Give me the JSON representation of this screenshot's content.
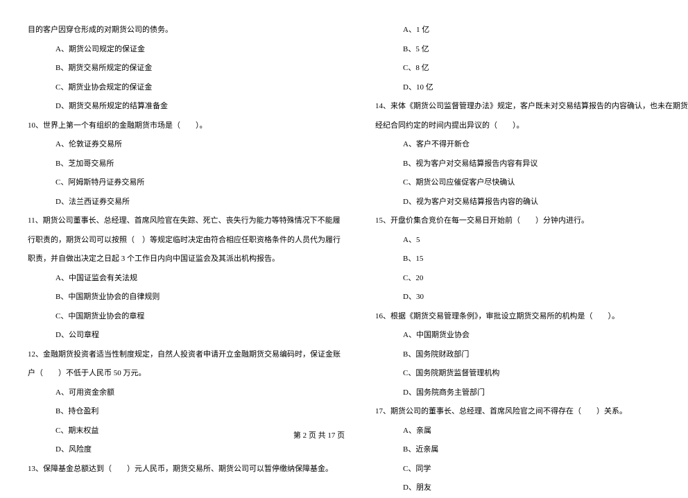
{
  "left": [
    {
      "cls": "indent0",
      "text": "目的客户因穿仓形成的对期货公司的债务。"
    },
    {
      "cls": "indent1",
      "text": "A、期货公司规定的保证金"
    },
    {
      "cls": "indent1",
      "text": "B、期货交易所规定的保证金"
    },
    {
      "cls": "indent1",
      "text": "C、期货业协会规定的保证金"
    },
    {
      "cls": "indent1",
      "text": "D、期货交易所规定的结算准备金"
    },
    {
      "cls": "indent0",
      "text": "10、世界上第一个有组织的金融期货市场是（　　）。"
    },
    {
      "cls": "indent1",
      "text": "A、伦敦证券交易所"
    },
    {
      "cls": "indent1",
      "text": "B、芝加哥交易所"
    },
    {
      "cls": "indent1",
      "text": "C、阿姆斯特丹证券交易所"
    },
    {
      "cls": "indent1",
      "text": "D、法兰西证券交易所"
    },
    {
      "cls": "indent0",
      "text": "11、期货公司董事长、总经理、首席风险官在失踪、死亡、丧失行为能力等特殊情况下不能履"
    },
    {
      "cls": "indent0",
      "text": "行职责的，期货公司可以按照（　）等规定临时决定由符合相应任职资格条件的人员代为履行"
    },
    {
      "cls": "indent0",
      "text": "职责，并自做出决定之日起 3 个工作日内向中国证监会及其派出机构报告。"
    },
    {
      "cls": "indent1",
      "text": "A、中国证监会有关法规"
    },
    {
      "cls": "indent1",
      "text": "B、中国期货业协会的自律规则"
    },
    {
      "cls": "indent1",
      "text": "C、中国期货业协会的章程"
    },
    {
      "cls": "indent1",
      "text": "D、公司章程"
    },
    {
      "cls": "indent0",
      "text": "",
      "spacer": true
    },
    {
      "cls": "indent0",
      "text": "12、金融期货投资者适当性制度规定，自然人投资者申请开立金融期货交易编码时，保证金账"
    },
    {
      "cls": "indent0",
      "text": "户（　　）不低于人民币 50 万元。"
    },
    {
      "cls": "indent1",
      "text": "A、可用资金余额"
    },
    {
      "cls": "indent1",
      "text": "B、持仓盈利"
    },
    {
      "cls": "indent1",
      "text": "C、期末权益"
    },
    {
      "cls": "indent1",
      "text": "D、风险度"
    },
    {
      "cls": "indent0",
      "text": "13、保障基金总额达到（　　）元人民币，期货交易所、期货公司可以暂停缴纳保障基金。"
    }
  ],
  "right": [
    {
      "cls": "indent1",
      "text": "A、1 亿"
    },
    {
      "cls": "indent1",
      "text": "B、5 亿"
    },
    {
      "cls": "indent1",
      "text": "C、8 亿"
    },
    {
      "cls": "indent1",
      "text": "D、10 亿"
    },
    {
      "cls": "indent0",
      "text": "14、来体《期货公司监督管理办法》规定，客户既未对交易结算报告的内容确认，也未在期货"
    },
    {
      "cls": "indent0",
      "text": "经纪合同约定的时间内提出异议的（　　）。"
    },
    {
      "cls": "indent1",
      "text": "A、客户不得开新仓"
    },
    {
      "cls": "indent1",
      "text": "B、视为客户对交易结算报告内容有异议"
    },
    {
      "cls": "indent1",
      "text": "C、期货公司应催促客户尽快确认"
    },
    {
      "cls": "indent1",
      "text": "D、视为客户对交易结算报告内容的确认"
    },
    {
      "cls": "indent0",
      "text": "15、开盘价集合竞价在每一交易日开始前（　　）分钟内进行。"
    },
    {
      "cls": "indent1",
      "text": "A、5"
    },
    {
      "cls": "indent1",
      "text": "B、15"
    },
    {
      "cls": "indent1",
      "text": "C、20"
    },
    {
      "cls": "indent1",
      "text": "D、30"
    },
    {
      "cls": "indent0",
      "text": "16、根据《期货交易管理条例》，审批设立期货交易所的机构是（　　）。"
    },
    {
      "cls": "indent1",
      "text": "A、中国期货业协会"
    },
    {
      "cls": "indent1",
      "text": "B、国务院财政部门"
    },
    {
      "cls": "indent1",
      "text": "C、国务院期货监督管理机构"
    },
    {
      "cls": "indent1",
      "text": "D、国务院商务主管部门"
    },
    {
      "cls": "indent0",
      "text": "17、期货公司的董事长、总经理、首席风险官之间不得存在（　　）关系。"
    },
    {
      "cls": "indent1",
      "text": "A、亲属"
    },
    {
      "cls": "indent1",
      "text": "B、近亲属"
    },
    {
      "cls": "indent1",
      "text": "C、同学"
    },
    {
      "cls": "indent1",
      "text": "D、朋友"
    }
  ],
  "footer": "第 2 页 共 17 页"
}
